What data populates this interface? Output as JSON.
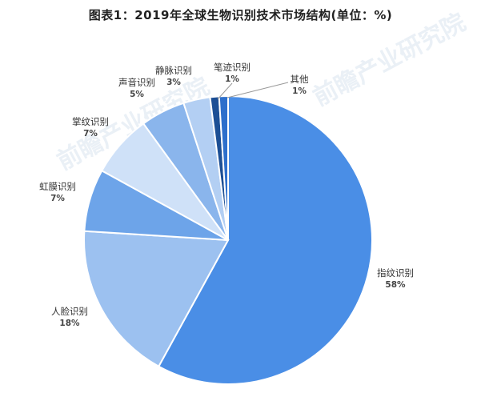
{
  "title": "图表1：2019年全球生物识别技术市场结构(单位：%)",
  "chart_data": {
    "type": "pie",
    "title": "图表1：2019年全球生物识别技术市场结构(单位：%)",
    "unit": "%",
    "slices": [
      {
        "name": "指纹识别",
        "value": 58,
        "label": "58%",
        "color": "#4a8ee6"
      },
      {
        "name": "人脸识别",
        "value": 18,
        "label": "18%",
        "color": "#9cc1f0"
      },
      {
        "name": "虹膜识别",
        "value": 7,
        "label": "7%",
        "color": "#6da4e9"
      },
      {
        "name": "掌纹识别",
        "value": 7,
        "label": "7%",
        "color": "#cfe1f8"
      },
      {
        "name": "声音识别",
        "value": 5,
        "label": "5%",
        "color": "#8ab5ec"
      },
      {
        "name": "静脉识别",
        "value": 3,
        "label": "3%",
        "color": "#b3cff3"
      },
      {
        "name": "笔迹识别",
        "value": 1,
        "label": "1%",
        "color": "#1c4f95"
      },
      {
        "name": "其他",
        "value": 1,
        "label": "1%",
        "color": "#2d6fcb"
      }
    ],
    "legend": "none"
  },
  "watermark": "前瞻产业研究院"
}
